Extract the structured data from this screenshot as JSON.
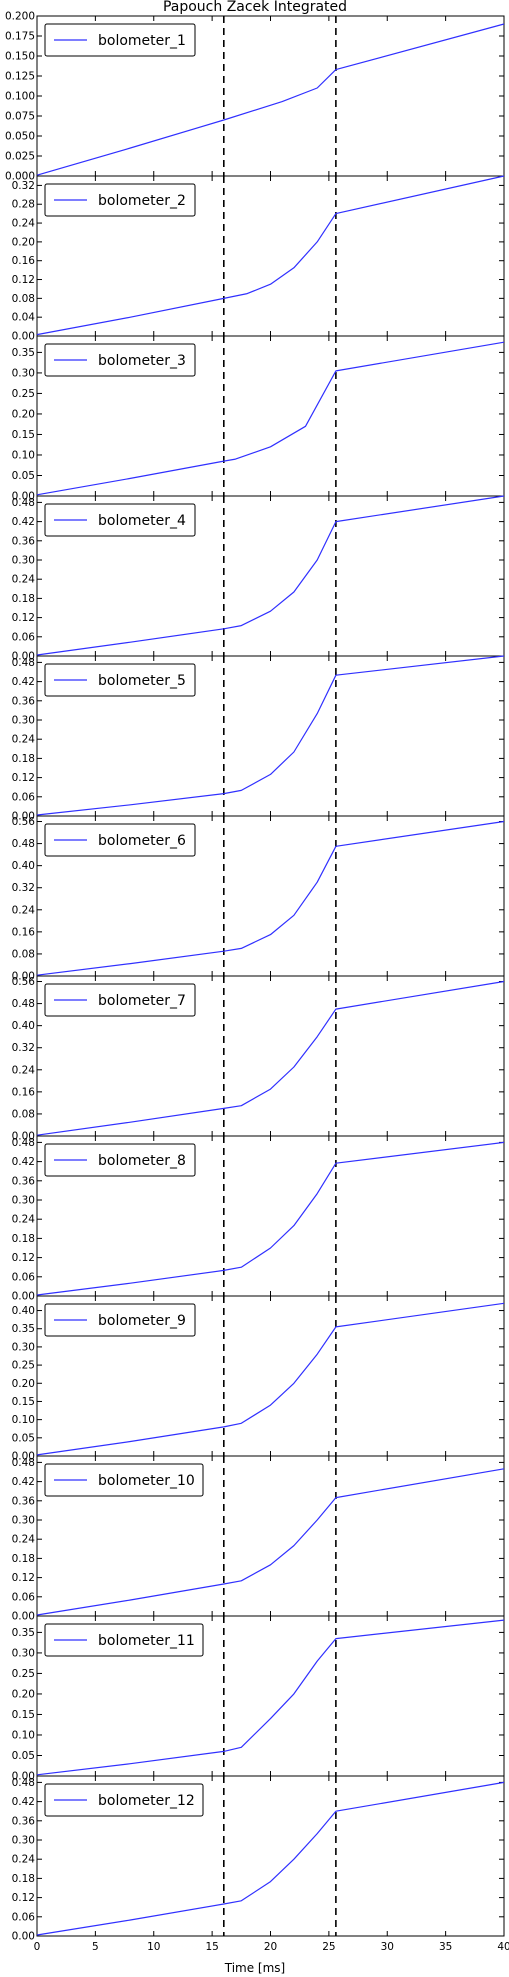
{
  "title": "Papouch Zacek Integrated",
  "xlabel": "Time [ms]",
  "colors": {
    "series": "#3030ff",
    "axes": "#000000",
    "markers": "#000000",
    "background": "#ffffff"
  },
  "chart_data": {
    "type": "line",
    "x_range": [
      0,
      40
    ],
    "x_ticks": [
      0,
      5,
      10,
      15,
      20,
      25,
      30,
      35,
      40
    ],
    "x_tick_labels": [
      "0",
      "5",
      "10",
      "15",
      "20",
      "25",
      "30",
      "35",
      "40"
    ],
    "vertical_markers": [
      16,
      25.6
    ],
    "legend_placement": "upper-left",
    "grid": false,
    "shared_x": true,
    "panels": [
      {
        "series_name": "bolometer_1",
        "ylim": [
          0,
          0.2
        ],
        "y_ticks": [
          0,
          0.025,
          0.05,
          0.075,
          0.1,
          0.125,
          0.15,
          0.175,
          0.2
        ],
        "y_tick_labels": [
          "0.000",
          "0.025",
          "0.050",
          "0.075",
          "0.100",
          "0.125",
          "0.150",
          "0.175",
          "0.200"
        ],
        "points": [
          [
            0,
            0.001
          ],
          [
            8,
            0.035
          ],
          [
            16,
            0.07
          ],
          [
            21,
            0.093
          ],
          [
            24,
            0.11
          ],
          [
            25.6,
            0.133
          ],
          [
            40,
            0.19
          ]
        ]
      },
      {
        "series_name": "bolometer_2",
        "ylim": [
          0,
          0.34
        ],
        "y_ticks": [
          0,
          0.04,
          0.08,
          0.12,
          0.16,
          0.2,
          0.24,
          0.28,
          0.32
        ],
        "y_tick_labels": [
          "0.00",
          "0.04",
          "0.08",
          "0.12",
          "0.16",
          "0.20",
          "0.24",
          "0.28",
          "0.32"
        ],
        "points": [
          [
            0,
            0.003
          ],
          [
            8,
            0.04
          ],
          [
            16,
            0.08
          ],
          [
            18,
            0.09
          ],
          [
            20,
            0.11
          ],
          [
            22,
            0.145
          ],
          [
            24,
            0.2
          ],
          [
            25.6,
            0.26
          ],
          [
            40,
            0.34
          ]
        ]
      },
      {
        "series_name": "bolometer_3",
        "ylim": [
          0,
          0.39
        ],
        "y_ticks": [
          0,
          0.05,
          0.1,
          0.15,
          0.2,
          0.25,
          0.3,
          0.35
        ],
        "y_tick_labels": [
          "0.00",
          "0.05",
          "0.10",
          "0.15",
          "0.20",
          "0.25",
          "0.30",
          "0.35"
        ],
        "points": [
          [
            0,
            0.003
          ],
          [
            8,
            0.043
          ],
          [
            16,
            0.085
          ],
          [
            17,
            0.09
          ],
          [
            20,
            0.12
          ],
          [
            23,
            0.17
          ],
          [
            25.6,
            0.305
          ],
          [
            40,
            0.375
          ]
        ]
      },
      {
        "series_name": "bolometer_4",
        "ylim": [
          0,
          0.5
        ],
        "y_ticks": [
          0,
          0.06,
          0.12,
          0.18,
          0.24,
          0.3,
          0.36,
          0.42,
          0.48
        ],
        "y_tick_labels": [
          "0.00",
          "0.06",
          "0.12",
          "0.18",
          "0.24",
          "0.30",
          "0.36",
          "0.42",
          "0.48"
        ],
        "points": [
          [
            0,
            0.003
          ],
          [
            8,
            0.043
          ],
          [
            16,
            0.085
          ],
          [
            17.5,
            0.095
          ],
          [
            20,
            0.14
          ],
          [
            22,
            0.2
          ],
          [
            24,
            0.3
          ],
          [
            25.6,
            0.42
          ],
          [
            40,
            0.5
          ]
        ]
      },
      {
        "series_name": "bolometer_5",
        "ylim": [
          0,
          0.5
        ],
        "y_ticks": [
          0,
          0.06,
          0.12,
          0.18,
          0.24,
          0.3,
          0.36,
          0.42,
          0.48
        ],
        "y_tick_labels": [
          "0.00",
          "0.06",
          "0.12",
          "0.18",
          "0.24",
          "0.30",
          "0.36",
          "0.42",
          "0.48"
        ],
        "points": [
          [
            0,
            0.003
          ],
          [
            8,
            0.035
          ],
          [
            16,
            0.07
          ],
          [
            17.5,
            0.08
          ],
          [
            20,
            0.13
          ],
          [
            22,
            0.2
          ],
          [
            24,
            0.32
          ],
          [
            25.6,
            0.44
          ],
          [
            40,
            0.5
          ]
        ]
      },
      {
        "series_name": "bolometer_6",
        "ylim": [
          0,
          0.58
        ],
        "y_ticks": [
          0,
          0.08,
          0.16,
          0.24,
          0.32,
          0.4,
          0.48,
          0.56
        ],
        "y_tick_labels": [
          "0.00",
          "0.08",
          "0.16",
          "0.24",
          "0.32",
          "0.40",
          "0.48",
          "0.56"
        ],
        "points": [
          [
            0,
            0.003
          ],
          [
            8,
            0.045
          ],
          [
            16,
            0.09
          ],
          [
            17.5,
            0.1
          ],
          [
            20,
            0.15
          ],
          [
            22,
            0.22
          ],
          [
            24,
            0.34
          ],
          [
            25.6,
            0.47
          ],
          [
            40,
            0.56
          ]
        ]
      },
      {
        "series_name": "bolometer_7",
        "ylim": [
          0,
          0.58
        ],
        "y_ticks": [
          0,
          0.08,
          0.16,
          0.24,
          0.32,
          0.4,
          0.48,
          0.56
        ],
        "y_tick_labels": [
          "0.00",
          "0.08",
          "0.16",
          "0.24",
          "0.32",
          "0.40",
          "0.48",
          "0.56"
        ],
        "points": [
          [
            0,
            0.003
          ],
          [
            8,
            0.05
          ],
          [
            16,
            0.1
          ],
          [
            17.5,
            0.11
          ],
          [
            20,
            0.17
          ],
          [
            22,
            0.25
          ],
          [
            24,
            0.36
          ],
          [
            25.6,
            0.46
          ],
          [
            40,
            0.56
          ]
        ]
      },
      {
        "series_name": "bolometer_8",
        "ylim": [
          0,
          0.5
        ],
        "y_ticks": [
          0,
          0.06,
          0.12,
          0.18,
          0.24,
          0.3,
          0.36,
          0.42,
          0.48
        ],
        "y_tick_labels": [
          "0.00",
          "0.06",
          "0.12",
          "0.18",
          "0.24",
          "0.30",
          "0.36",
          "0.42",
          "0.48"
        ],
        "points": [
          [
            0,
            0.003
          ],
          [
            8,
            0.04
          ],
          [
            16,
            0.08
          ],
          [
            17.5,
            0.09
          ],
          [
            20,
            0.15
          ],
          [
            22,
            0.22
          ],
          [
            24,
            0.32
          ],
          [
            25.6,
            0.415
          ],
          [
            40,
            0.48
          ]
        ]
      },
      {
        "series_name": "bolometer_9",
        "ylim": [
          0,
          0.44
        ],
        "y_ticks": [
          0,
          0.05,
          0.1,
          0.15,
          0.2,
          0.25,
          0.3,
          0.35,
          0.4
        ],
        "y_tick_labels": [
          "0.00",
          "0.05",
          "0.10",
          "0.15",
          "0.20",
          "0.25",
          "0.30",
          "0.35",
          "0.40"
        ],
        "points": [
          [
            0,
            0.003
          ],
          [
            8,
            0.04
          ],
          [
            16,
            0.08
          ],
          [
            17.5,
            0.09
          ],
          [
            20,
            0.14
          ],
          [
            22,
            0.2
          ],
          [
            24,
            0.28
          ],
          [
            25.6,
            0.355
          ],
          [
            40,
            0.42
          ]
        ]
      },
      {
        "series_name": "bolometer_10",
        "ylim": [
          0,
          0.5
        ],
        "y_ticks": [
          0,
          0.06,
          0.12,
          0.18,
          0.24,
          0.3,
          0.36,
          0.42,
          0.48
        ],
        "y_tick_labels": [
          "0.00",
          "0.06",
          "0.12",
          "0.18",
          "0.24",
          "0.30",
          "0.36",
          "0.42",
          "0.48"
        ],
        "points": [
          [
            0,
            0.003
          ],
          [
            8,
            0.05
          ],
          [
            16,
            0.1
          ],
          [
            17.5,
            0.11
          ],
          [
            20,
            0.16
          ],
          [
            22,
            0.22
          ],
          [
            24,
            0.3
          ],
          [
            25.6,
            0.37
          ],
          [
            40,
            0.46
          ]
        ]
      },
      {
        "series_name": "bolometer_11",
        "ylim": [
          0,
          0.39
        ],
        "y_ticks": [
          0,
          0.05,
          0.1,
          0.15,
          0.2,
          0.25,
          0.3,
          0.35
        ],
        "y_tick_labels": [
          "0.00",
          "0.05",
          "0.10",
          "0.15",
          "0.20",
          "0.25",
          "0.30",
          "0.35"
        ],
        "points": [
          [
            0,
            0.003
          ],
          [
            8,
            0.03
          ],
          [
            16,
            0.06
          ],
          [
            17.5,
            0.07
          ],
          [
            20,
            0.14
          ],
          [
            22,
            0.2
          ],
          [
            24,
            0.28
          ],
          [
            25.6,
            0.335
          ],
          [
            40,
            0.38
          ]
        ]
      },
      {
        "series_name": "bolometer_12",
        "ylim": [
          0,
          0.5
        ],
        "y_ticks": [
          0,
          0.06,
          0.12,
          0.18,
          0.24,
          0.3,
          0.36,
          0.42,
          0.48
        ],
        "y_tick_labels": [
          "0.00",
          "0.06",
          "0.12",
          "0.18",
          "0.24",
          "0.30",
          "0.36",
          "0.42",
          "0.48"
        ],
        "points": [
          [
            0,
            0.003
          ],
          [
            8,
            0.05
          ],
          [
            16,
            0.1
          ],
          [
            17.5,
            0.11
          ],
          [
            20,
            0.17
          ],
          [
            22,
            0.24
          ],
          [
            24,
            0.32
          ],
          [
            25.6,
            0.39
          ],
          [
            40,
            0.48
          ]
        ]
      }
    ]
  }
}
